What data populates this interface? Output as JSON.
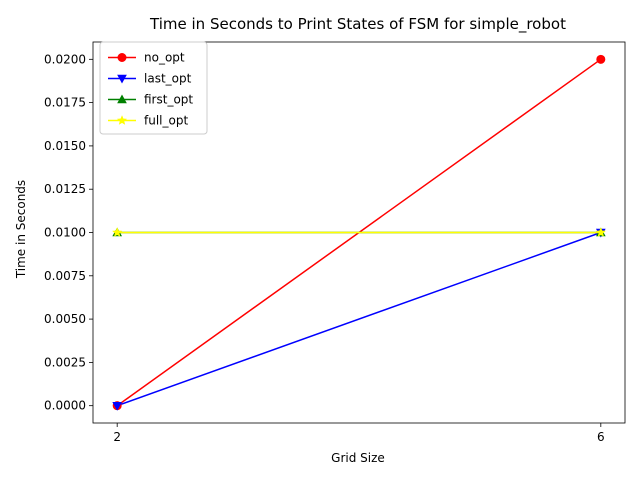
{
  "chart_data": {
    "type": "line",
    "title": "Time in Seconds to Print States of FSM for simple_robot",
    "xlabel": "Grid Size",
    "ylabel": "Time in Seconds",
    "x": [
      2,
      6
    ],
    "xlim": [
      1.8,
      6.2
    ],
    "ylim": [
      -0.001,
      0.021
    ],
    "xticks": [
      "2",
      "6"
    ],
    "yticks": [
      "0.0000",
      "0.0025",
      "0.0050",
      "0.0075",
      "0.0100",
      "0.0125",
      "0.0150",
      "0.0175",
      "0.0200"
    ],
    "grid": false,
    "legend_position": "top-left",
    "series": [
      {
        "name": "no_opt",
        "values": [
          0.0,
          0.02
        ],
        "color": "#ff0000",
        "marker": "circle"
      },
      {
        "name": "last_opt",
        "values": [
          0.0,
          0.01
        ],
        "color": "#0000ff",
        "marker": "triangle-down"
      },
      {
        "name": "first_opt",
        "values": [
          0.01,
          0.01
        ],
        "color": "#008000",
        "marker": "triangle-up"
      },
      {
        "name": "full_opt",
        "values": [
          0.01,
          0.01
        ],
        "color": "#ffff00",
        "marker": "star"
      }
    ]
  }
}
